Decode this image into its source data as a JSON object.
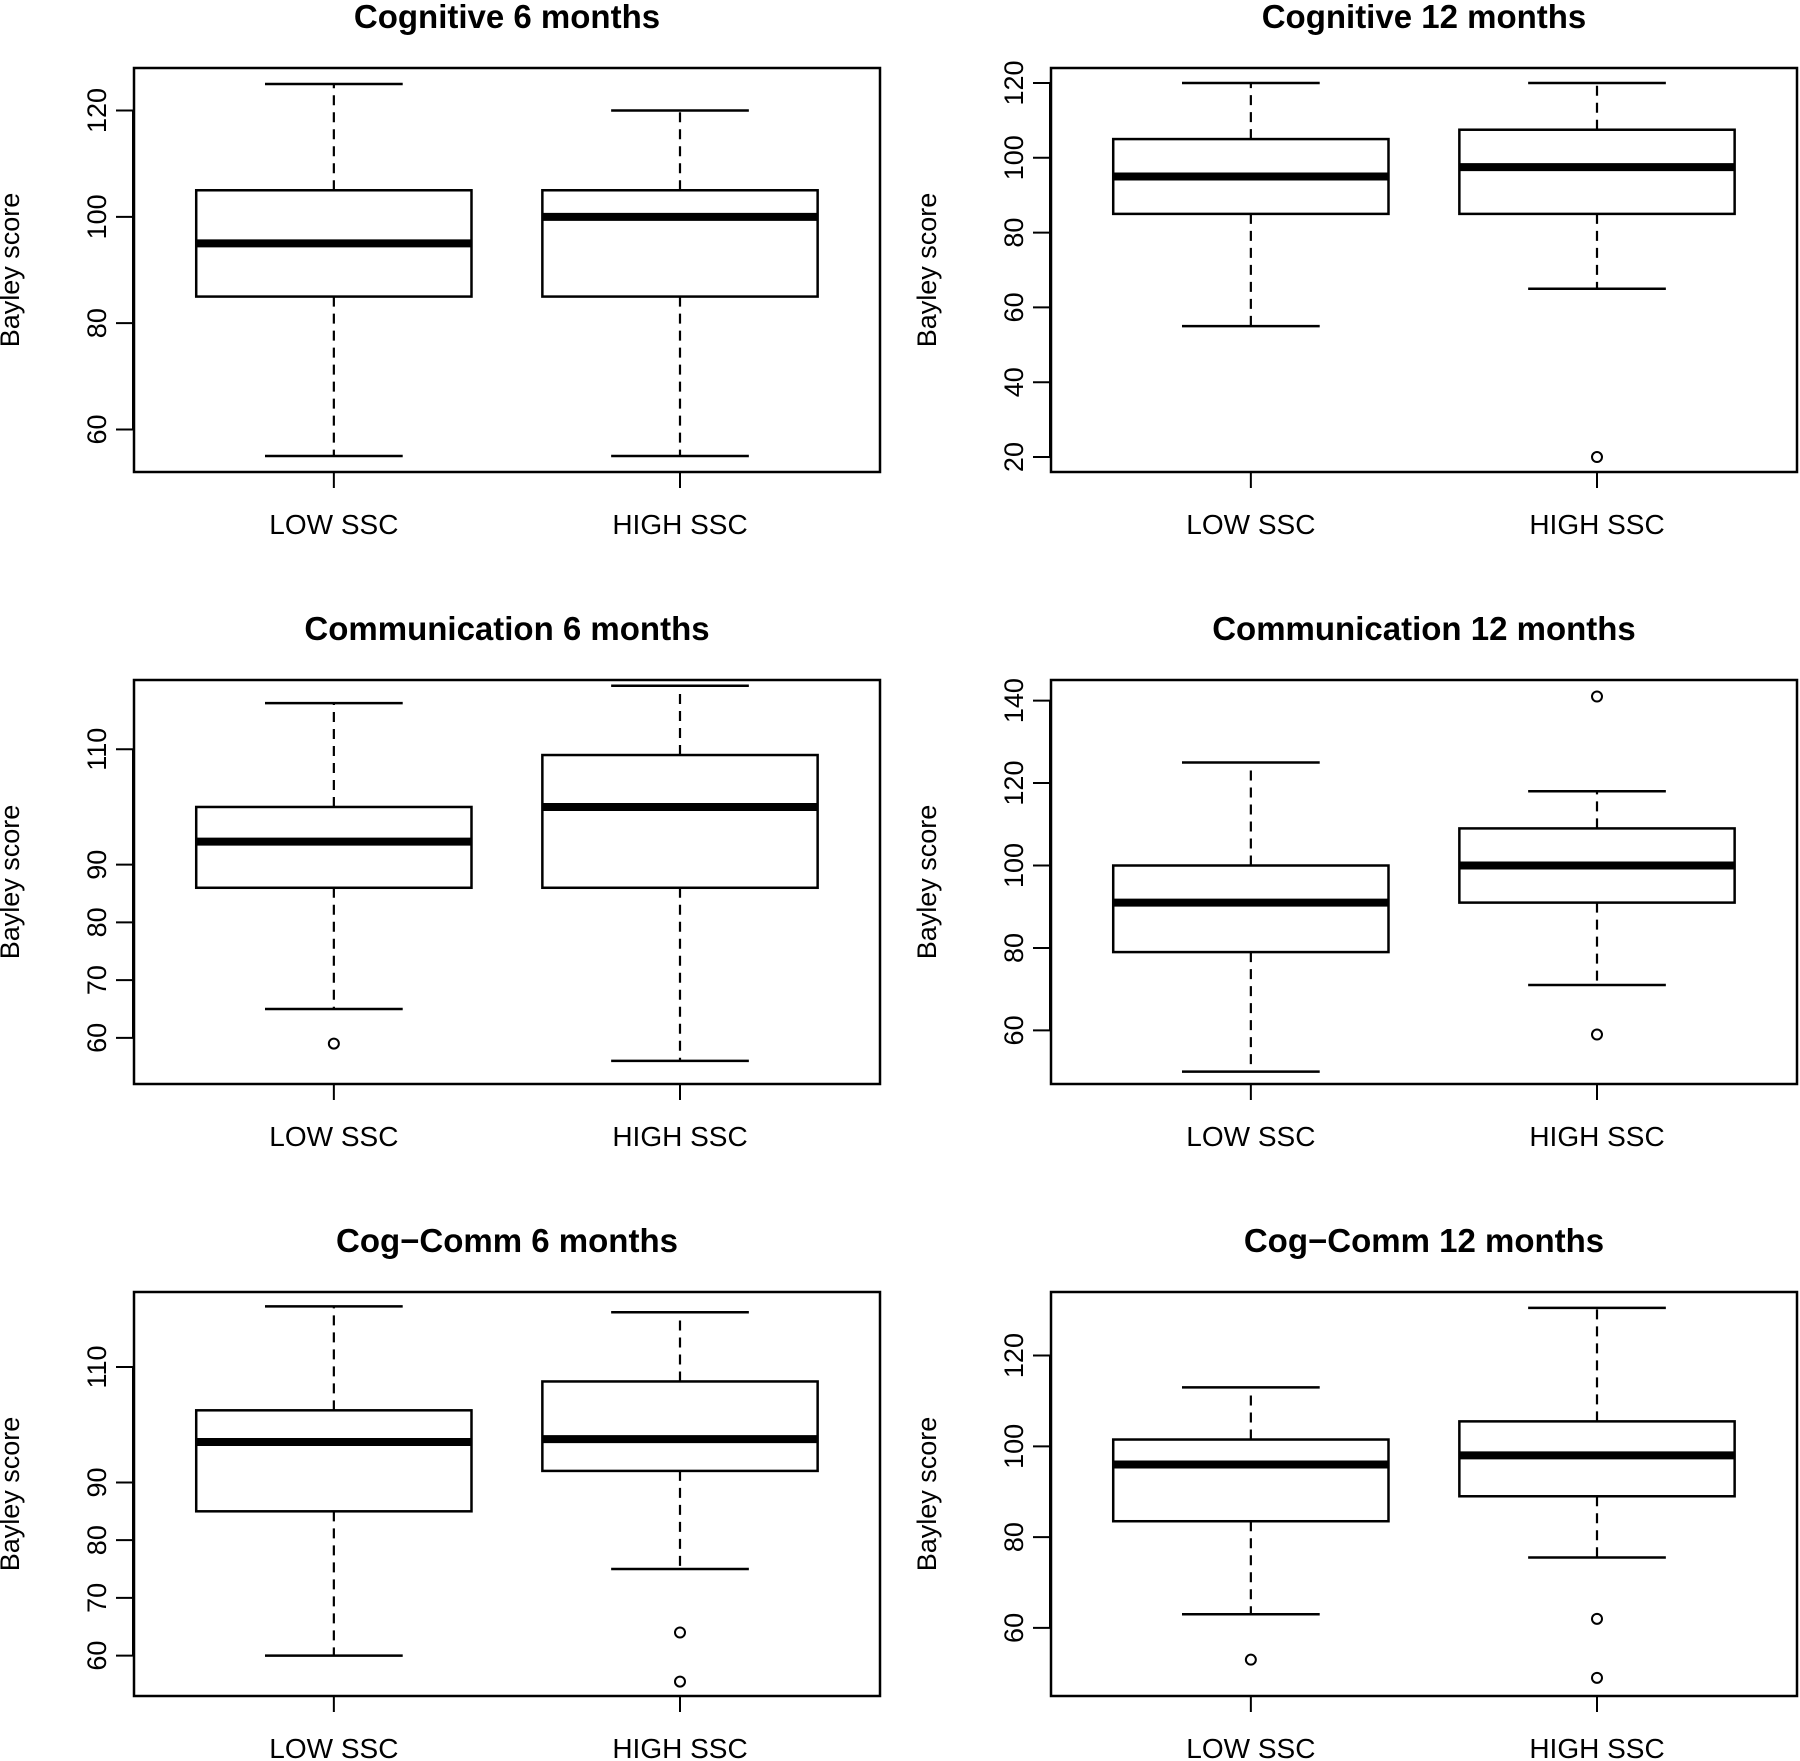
{
  "figure": {
    "background": "#ffffff",
    "stroke_color": "#000000"
  },
  "chart_data": [
    {
      "type": "boxplot",
      "title": "Cognitive 6 months",
      "xlabel": "",
      "ylabel": "Bayley score",
      "categories": [
        "LOW SSC",
        "HIGH SSC"
      ],
      "ylim": [
        52,
        128
      ],
      "yticks": [
        60,
        80,
        100,
        120
      ],
      "boxes": [
        {
          "whisker_low": 55,
          "q1": 85,
          "median": 95,
          "q3": 105,
          "whisker_high": 125,
          "outliers": []
        },
        {
          "whisker_low": 55,
          "q1": 85,
          "median": 100,
          "q3": 105,
          "whisker_high": 120,
          "outliers": []
        }
      ]
    },
    {
      "type": "boxplot",
      "title": "Cognitive 12 months",
      "xlabel": "",
      "ylabel": "Bayley score",
      "categories": [
        "LOW SSC",
        "HIGH SSC"
      ],
      "ylim": [
        16,
        124
      ],
      "yticks": [
        20,
        40,
        60,
        80,
        100,
        120
      ],
      "boxes": [
        {
          "whisker_low": 55,
          "q1": 85,
          "median": 95,
          "q3": 105,
          "whisker_high": 120,
          "outliers": []
        },
        {
          "whisker_low": 65,
          "q1": 85,
          "median": 97.5,
          "q3": 107.5,
          "whisker_high": 120,
          "outliers": [
            20
          ]
        }
      ]
    },
    {
      "type": "boxplot",
      "title": "Communication 6 months",
      "xlabel": "",
      "ylabel": "Bayley score",
      "categories": [
        "LOW SSC",
        "HIGH SSC"
      ],
      "ylim": [
        52,
        122
      ],
      "yticks": [
        60,
        70,
        80,
        90,
        110
      ],
      "boxes": [
        {
          "whisker_low": 65,
          "q1": 86,
          "median": 94,
          "q3": 100,
          "whisker_high": 118,
          "outliers": [
            59
          ]
        },
        {
          "whisker_low": 56,
          "q1": 86,
          "median": 100,
          "q3": 109,
          "whisker_high": 121,
          "outliers": []
        }
      ]
    },
    {
      "type": "boxplot",
      "title": "Communication 12 months",
      "xlabel": "",
      "ylabel": "Bayley score",
      "categories": [
        "LOW SSC",
        "HIGH SSC"
      ],
      "ylim": [
        47,
        145
      ],
      "yticks": [
        60,
        80,
        100,
        120,
        140
      ],
      "boxes": [
        {
          "whisker_low": 50,
          "q1": 79,
          "median": 91,
          "q3": 100,
          "whisker_high": 125,
          "outliers": []
        },
        {
          "whisker_low": 71,
          "q1": 91,
          "median": 100,
          "q3": 109,
          "whisker_high": 118,
          "outliers": [
            59,
            141
          ]
        }
      ]
    },
    {
      "type": "boxplot",
      "title": "Cog−Comm 6 months",
      "xlabel": "",
      "ylabel": "Bayley score",
      "categories": [
        "LOW SSC",
        "HIGH SSC"
      ],
      "ylim": [
        53,
        123
      ],
      "yticks": [
        60,
        70,
        80,
        90,
        110
      ],
      "boxes": [
        {
          "whisker_low": 60,
          "q1": 85,
          "median": 97,
          "q3": 102.5,
          "whisker_high": 120.5,
          "outliers": []
        },
        {
          "whisker_low": 75,
          "q1": 92,
          "median": 97.5,
          "q3": 107.5,
          "whisker_high": 119.5,
          "outliers": [
            64,
            55.5
          ]
        }
      ]
    },
    {
      "type": "boxplot",
      "title": "Cog−Comm 12 months",
      "xlabel": "",
      "ylabel": "Bayley score",
      "categories": [
        "LOW SSC",
        "HIGH SSC"
      ],
      "ylim": [
        45,
        134
      ],
      "yticks": [
        60,
        80,
        100,
        120
      ],
      "boxes": [
        {
          "whisker_low": 63,
          "q1": 83.5,
          "median": 96,
          "q3": 101.5,
          "whisker_high": 113,
          "outliers": [
            53
          ]
        },
        {
          "whisker_low": 75.5,
          "q1": 89,
          "median": 98,
          "q3": 105.5,
          "whisker_high": 130.5,
          "outliers": [
            62,
            49
          ]
        }
      ]
    }
  ]
}
